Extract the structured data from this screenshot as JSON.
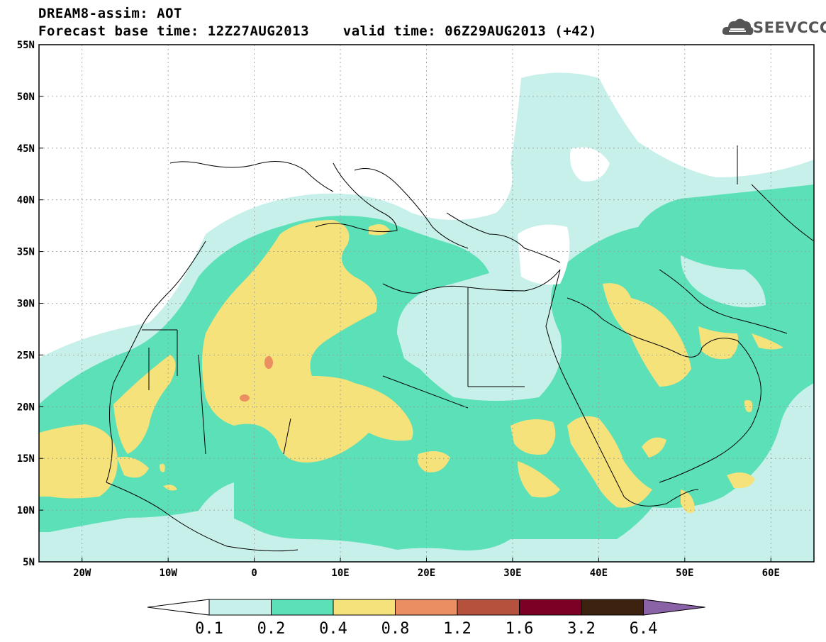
{
  "header": {
    "title_line1": "DREAM8-assim: AOT",
    "title_line2": "Forecast base time: 12Z27AUG2013    valid time: 06Z29AUG2013 (+42)"
  },
  "logo": {
    "text": "SEEVCCC",
    "icon": "cloud-icon",
    "color": "#555555"
  },
  "map": {
    "lon_range": [
      -25,
      65
    ],
    "lat_range": [
      5,
      55
    ],
    "lon_ticks": [
      {
        "value": -20,
        "label": "20W"
      },
      {
        "value": -10,
        "label": "10W"
      },
      {
        "value": 0,
        "label": "0"
      },
      {
        "value": 10,
        "label": "10E"
      },
      {
        "value": 20,
        "label": "20E"
      },
      {
        "value": 30,
        "label": "30E"
      },
      {
        "value": 40,
        "label": "40E"
      },
      {
        "value": 50,
        "label": "50E"
      },
      {
        "value": 60,
        "label": "60E"
      }
    ],
    "lat_ticks": [
      {
        "value": 55,
        "label": "55N"
      },
      {
        "value": 50,
        "label": "50N"
      },
      {
        "value": 45,
        "label": "45N"
      },
      {
        "value": 40,
        "label": "40N"
      },
      {
        "value": 35,
        "label": "35N"
      },
      {
        "value": 30,
        "label": "30N"
      },
      {
        "value": 25,
        "label": "25N"
      },
      {
        "value": 20,
        "label": "20N"
      },
      {
        "value": 15,
        "label": "15N"
      },
      {
        "value": 10,
        "label": "10N"
      },
      {
        "value": 5,
        "label": "5N"
      }
    ],
    "gridlines": true
  },
  "colorbar": {
    "levels": [
      "0.1",
      "0.2",
      "0.4",
      "0.8",
      "1.2",
      "1.6",
      "3.2",
      "6.4"
    ],
    "colors": [
      "#c8f0ea",
      "#5be0b8",
      "#f5e27a",
      "#eb8f62",
      "#b5513d",
      "#7a0025",
      "#3d2210",
      "#8a63a6"
    ],
    "below_color": "#ffffff",
    "above_color": "#8a63a6"
  }
}
